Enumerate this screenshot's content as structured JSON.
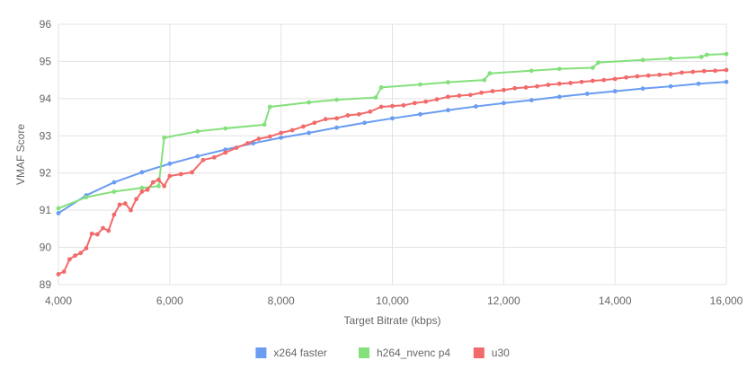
{
  "chart_data": {
    "type": "line",
    "title": "",
    "xlabel": "Target Bitrate (kbps)",
    "ylabel": "VMAF Score",
    "xlim": [
      4000,
      16000
    ],
    "ylim": [
      89,
      96
    ],
    "x_ticks": [
      4000,
      6000,
      8000,
      10000,
      12000,
      14000,
      16000
    ],
    "x_tick_labels": [
      "4,000",
      "6,000",
      "8,000",
      "10,000",
      "12,000",
      "14,000",
      "16,000"
    ],
    "y_ticks": [
      89,
      90,
      91,
      92,
      93,
      94,
      95,
      96
    ],
    "y_tick_labels": [
      "89",
      "90",
      "91",
      "92",
      "93",
      "94",
      "95",
      "96"
    ],
    "grid": true,
    "legend_position": "bottom-center",
    "series": [
      {
        "name": "x264 faster",
        "color": "#6a9cf2",
        "x": [
          4000,
          4500,
          5000,
          5500,
          6000,
          6500,
          7000,
          7500,
          8000,
          8500,
          9000,
          9500,
          10000,
          10500,
          11000,
          11500,
          12000,
          12500,
          13000,
          13500,
          14000,
          14500,
          15000,
          15500,
          16000
        ],
        "values": [
          90.92,
          91.4,
          91.75,
          92.02,
          92.25,
          92.45,
          92.63,
          92.8,
          92.95,
          93.08,
          93.22,
          93.35,
          93.47,
          93.58,
          93.69,
          93.79,
          93.88,
          93.96,
          94.05,
          94.13,
          94.2,
          94.27,
          94.33,
          94.4,
          94.45
        ]
      },
      {
        "name": "h264_nvenc p4",
        "color": "#84e07b",
        "x": [
          4000,
          4500,
          5000,
          5500,
          5800,
          5900,
          6500,
          7000,
          7700,
          7800,
          8500,
          9000,
          9700,
          9800,
          10500,
          11000,
          11650,
          11750,
          12500,
          13000,
          13600,
          13700,
          14500,
          15000,
          15550,
          15650,
          16000
        ],
        "values": [
          91.05,
          91.35,
          91.5,
          91.6,
          91.65,
          92.95,
          93.12,
          93.2,
          93.3,
          93.78,
          93.9,
          93.97,
          94.03,
          94.3,
          94.38,
          94.44,
          94.5,
          94.68,
          94.75,
          94.8,
          94.83,
          94.97,
          95.04,
          95.08,
          95.12,
          95.18,
          95.2
        ]
      },
      {
        "name": "u30",
        "color": "#f26a6a",
        "x": [
          4000,
          4100,
          4200,
          4300,
          4400,
          4500,
          4600,
          4700,
          4800,
          4900,
          5000,
          5100,
          5200,
          5300,
          5400,
          5500,
          5600,
          5700,
          5800,
          5900,
          6000,
          6200,
          6400,
          6600,
          6800,
          7000,
          7200,
          7400,
          7600,
          7800,
          8000,
          8200,
          8400,
          8600,
          8800,
          9000,
          9200,
          9400,
          9600,
          9800,
          10000,
          10200,
          10400,
          10600,
          10800,
          11000,
          11200,
          11400,
          11600,
          11800,
          12000,
          12200,
          12400,
          12600,
          12800,
          13000,
          13200,
          13400,
          13600,
          13800,
          14000,
          14200,
          14400,
          14600,
          14800,
          15000,
          15200,
          15400,
          15600,
          15800,
          16000
        ],
        "values": [
          89.28,
          89.35,
          89.68,
          89.78,
          89.85,
          89.98,
          90.37,
          90.35,
          90.52,
          90.45,
          90.88,
          91.15,
          91.18,
          91.0,
          91.3,
          91.5,
          91.55,
          91.75,
          91.82,
          91.65,
          91.92,
          91.97,
          92.02,
          92.35,
          92.42,
          92.55,
          92.68,
          92.8,
          92.92,
          92.98,
          93.08,
          93.15,
          93.25,
          93.35,
          93.45,
          93.47,
          93.55,
          93.58,
          93.65,
          93.78,
          93.8,
          93.82,
          93.88,
          93.92,
          93.98,
          94.05,
          94.08,
          94.1,
          94.16,
          94.2,
          94.23,
          94.28,
          94.3,
          94.33,
          94.37,
          94.4,
          94.42,
          94.45,
          94.48,
          94.5,
          94.53,
          94.57,
          94.6,
          94.62,
          94.64,
          94.66,
          94.7,
          94.72,
          94.74,
          94.75,
          94.77
        ]
      }
    ]
  }
}
